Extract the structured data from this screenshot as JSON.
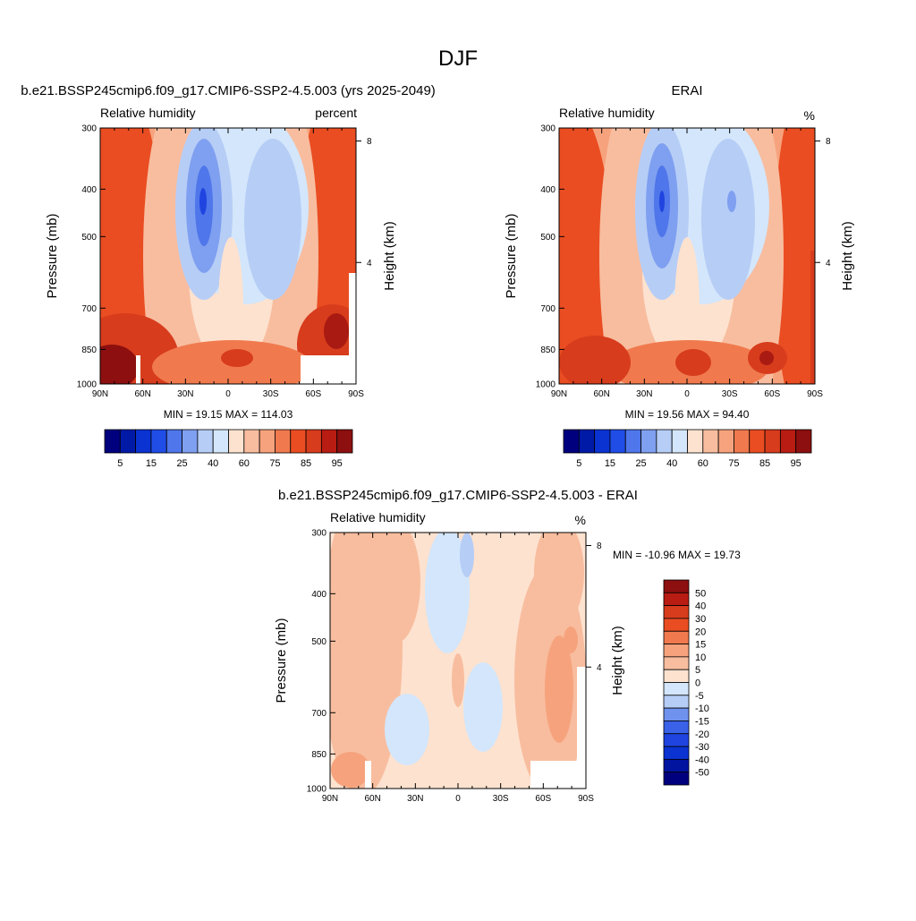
{
  "figure": {
    "title": "DJF"
  },
  "chart_data": [
    {
      "type": "heatmap",
      "panel": "model",
      "title": "b.e21.BSSP245cmip6.f09_g17.CMIP6-SSP2-4.5.003 (yrs 2025-2049)",
      "left_label": "Relative humidity",
      "units": "percent",
      "ylabel": "Pressure (mb)",
      "y2label": "Height (km)",
      "x_ticks": [
        "90N",
        "60N",
        "30N",
        "0",
        "30S",
        "60S",
        "90S"
      ],
      "xlim": [
        90,
        -90
      ],
      "y_ticks": [
        300,
        400,
        500,
        700,
        850,
        1000
      ],
      "ylim": [
        1000,
        300
      ],
      "y2_ticks": [
        8,
        4
      ],
      "min_value": 19.15,
      "max_value": 114.03,
      "stats_text": "MIN =  19.15  MAX = 114.03",
      "stats_position": "below",
      "palette": "blue-to-red",
      "levels": [
        5,
        10,
        15,
        20,
        25,
        30,
        40,
        50,
        60,
        65,
        70,
        75,
        80,
        85,
        90,
        95
      ],
      "colorbar_labels": [
        "5",
        "15",
        "25",
        "40",
        "60",
        "75",
        "85",
        "95"
      ],
      "colorbar_orientation": "horizontal"
    },
    {
      "type": "heatmap",
      "panel": "obs",
      "title": "ERAI",
      "left_label": "Relative humidity",
      "units": "%",
      "ylabel": "Pressure (mb)",
      "y2label": "Height (km)",
      "x_ticks": [
        "90N",
        "60N",
        "30N",
        "0",
        "30S",
        "60S",
        "90S"
      ],
      "xlim": [
        90,
        -90
      ],
      "y_ticks": [
        300,
        400,
        500,
        700,
        850,
        1000
      ],
      "ylim": [
        1000,
        300
      ],
      "y2_ticks": [
        8,
        4
      ],
      "min_value": 19.56,
      "max_value": 94.4,
      "stats_text": "MIN =  19.56  MAX =  94.40",
      "stats_position": "below",
      "palette": "blue-to-red",
      "levels": [
        5,
        10,
        15,
        20,
        25,
        30,
        40,
        50,
        60,
        65,
        70,
        75,
        80,
        85,
        90,
        95
      ],
      "colorbar_labels": [
        "5",
        "15",
        "25",
        "40",
        "60",
        "75",
        "85",
        "95"
      ],
      "colorbar_orientation": "horizontal"
    },
    {
      "type": "heatmap",
      "panel": "diff",
      "title": "b.e21.BSSP245cmip6.f09_g17.CMIP6-SSP2-4.5.003 - ERAI",
      "left_label": "Relative humidity",
      "units": "%",
      "ylabel": "Pressure (mb)",
      "y2label": "Height (km)",
      "x_ticks": [
        "90N",
        "60N",
        "30N",
        "0",
        "30S",
        "60S",
        "90S"
      ],
      "xlim": [
        90,
        -90
      ],
      "y_ticks": [
        300,
        400,
        500,
        700,
        850,
        1000
      ],
      "ylim": [
        1000,
        300
      ],
      "y2_ticks": [
        8,
        4
      ],
      "min_value": -10.96,
      "max_value": 19.73,
      "stats_text": "MIN = -10.96  MAX =  19.73",
      "stats_position": "right",
      "palette": "blue-to-red",
      "levels": [
        -50,
        -40,
        -30,
        -20,
        -15,
        -10,
        -5,
        0,
        5,
        10,
        15,
        20,
        30,
        40,
        50
      ],
      "colorbar_labels": [
        "50",
        "40",
        "30",
        "20",
        "15",
        "10",
        "5",
        "0",
        "-5",
        "-10",
        "-15",
        "-20",
        "-30",
        "-40",
        "-50"
      ],
      "colorbar_orientation": "vertical"
    }
  ]
}
